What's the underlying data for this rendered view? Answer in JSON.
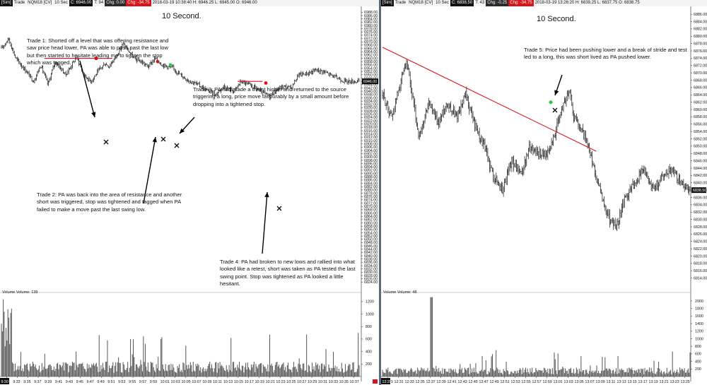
{
  "left": {
    "header": [
      {
        "text": "[Sim]",
        "style": "blk"
      },
      {
        "text": "Trade",
        "style": ""
      },
      {
        "text": "NQM18 [CV]",
        "style": ""
      },
      {
        "text": "10 Sec",
        "style": ""
      },
      {
        "text": "C: 6946.00",
        "style": "blk"
      },
      {
        "text": "T: 94",
        "style": ""
      },
      {
        "text": "Chg: 0.00",
        "style": "grn"
      },
      {
        "text": "Chg: -34.75",
        "style": "red"
      },
      {
        "text": "2018-03-19 10:38:40 H: 6946.25 L: 6945.00 O: 6946.00",
        "style": ""
      }
    ],
    "title": "10 Second.",
    "annotations": {
      "trade1": "Trade 1:  Shorted off a level that was offering resistance and saw price head lower, PA was able to push past the last low but then started to hesitate leading me to tighten the stop which was tagged.",
      "trade2": "Trade 2:  PA was back into the area of resistance and another short was triggered, stop was tightened and tagged when PA failed to make a move past the last swing low.",
      "trade3": "Trade 3:  PA had made a thrust higher and returned to the source triggering a long, price move favourably by a small amount before dropping into a tightened stop.",
      "trade4": "Trade 4:  PA had broken to new lows and rallied into what looked like a retest, short was taken as PA tested the last swing point. Stop was tightened as PA looked a little hesitant."
    },
    "volume_label": "Volume  Volume: 139",
    "last_price_label": "6946.00",
    "x_start_label": "9:30",
    "colors": {
      "line": "#d8141b",
      "entry_red": "#d8141b",
      "entry_green": "#2ecc40",
      "bars": "#111111",
      "volume": "#555555"
    }
  },
  "right": {
    "header": [
      {
        "text": "[Sim]",
        "style": "blk"
      },
      {
        "text": "Trade",
        "style": ""
      },
      {
        "text": "NQM18 [CV]",
        "style": ""
      },
      {
        "text": "10 Sec",
        "style": ""
      },
      {
        "text": "C: 6838.50",
        "style": "blk"
      },
      {
        "text": "T: 43",
        "style": ""
      },
      {
        "text": "Chg: -0.25",
        "style": "grn"
      },
      {
        "text": "Chg: -34.75",
        "style": "red"
      },
      {
        "text": "2018-03-19 13:26:20 H: 6839.25 L: 6837.75 O: 6838.75",
        "style": ""
      }
    ],
    "title": "10 Second.",
    "annotations": {
      "trade5": "Trade 5:  Price had been pushing lower and a break of stride and test led to a long, this was short lived as PA pushed lower."
    },
    "volume_label": "Volume  Volume: 48",
    "last_price_label": "6838.50",
    "x_start_label": "12:29"
  },
  "chart_data": [
    {
      "type": "bar",
      "subtype": "ohlc-price",
      "instrument": "NQM18",
      "interval": "10 Sec",
      "y_ticks": [
        6824,
        6826,
        6828,
        6830,
        6832,
        6834,
        6836,
        6838,
        6840,
        6842,
        6844,
        6846,
        6848,
        6850,
        6852,
        6854,
        6856,
        6858,
        6860,
        6862,
        6864,
        6866,
        6868,
        6870,
        6872,
        6874,
        6876,
        6878,
        6880,
        6882,
        6884,
        6886,
        6888,
        6890,
        6892,
        6894,
        6896,
        6898,
        6900,
        6902,
        6904,
        6906,
        6908,
        6910,
        6912,
        6914,
        6916,
        6918,
        6920,
        6922,
        6924,
        6926,
        6928,
        6930,
        6932,
        6934,
        6936,
        6938,
        6940,
        6942,
        6944,
        6946,
        6948,
        6950,
        6952,
        6954,
        6956,
        6958,
        6960,
        6962,
        6964,
        6966,
        6968,
        6970,
        6972,
        6974,
        6976,
        6978,
        6980,
        6982,
        6984,
        6986,
        6988
      ],
      "ylim": [
        6822,
        6989
      ],
      "x_ticks": [
        "9:31",
        "9:33",
        "9:35",
        "9:37",
        "9:39",
        "9:41",
        "9:43",
        "9:45",
        "9:47",
        "9:49",
        "9:51",
        "9:53",
        "9:55",
        "9:57",
        "9:59",
        "10:01",
        "10:03",
        "10:05",
        "10:07",
        "10:09",
        "10:11",
        "10:13",
        "10:15",
        "10:17",
        "10:19",
        "10:21",
        "10:23",
        "10:25",
        "10:27",
        "10:29",
        "10:31",
        "10:33",
        "10:35",
        "10:37"
      ],
      "price_path": [
        [
          0,
          6966
        ],
        [
          0.02,
          6972
        ],
        [
          0.04,
          6960
        ],
        [
          0.07,
          6952
        ],
        [
          0.09,
          6946
        ],
        [
          0.11,
          6956
        ],
        [
          0.13,
          6944
        ],
        [
          0.15,
          6958
        ],
        [
          0.18,
          6950
        ],
        [
          0.21,
          6961
        ],
        [
          0.23,
          6950
        ],
        [
          0.25,
          6946
        ],
        [
          0.27,
          6952
        ],
        [
          0.29,
          6957
        ],
        [
          0.3,
          6955
        ],
        [
          0.32,
          6961
        ],
        [
          0.34,
          6969
        ],
        [
          0.37,
          6960
        ],
        [
          0.39,
          6958
        ],
        [
          0.41,
          6955
        ],
        [
          0.43,
          6960
        ],
        [
          0.45,
          6956
        ],
        [
          0.48,
          6954
        ],
        [
          0.5,
          6950
        ],
        [
          0.52,
          6947
        ],
        [
          0.55,
          6944
        ],
        [
          0.57,
          6941
        ],
        [
          0.6,
          6938
        ],
        [
          0.62,
          6943
        ],
        [
          0.65,
          6940
        ],
        [
          0.67,
          6946
        ],
        [
          0.69,
          6944
        ],
        [
          0.71,
          6942
        ],
        [
          0.73,
          6939
        ],
        [
          0.75,
          6937
        ],
        [
          0.77,
          6941
        ],
        [
          0.79,
          6943
        ],
        [
          0.81,
          6942
        ],
        [
          0.83,
          6950
        ],
        [
          0.86,
          6951
        ],
        [
          0.88,
          6953
        ],
        [
          0.9,
          6952
        ],
        [
          0.92,
          6950
        ],
        [
          0.94,
          6948
        ],
        [
          0.96,
          6946
        ],
        [
          1.0,
          6946
        ]
      ],
      "resistance_lines": [
        {
          "price": 6960,
          "x_range": [
            0.12,
            0.31
          ]
        },
        {
          "price": 6946,
          "x_range": [
            0.66,
            0.73
          ]
        }
      ],
      "entries": [
        {
          "trade": 1,
          "side": "short",
          "price": 6960
        },
        {
          "trade": 2,
          "side": "short",
          "price": 6958
        },
        {
          "trade": 3,
          "side": "long",
          "price": 6956
        },
        {
          "trade": 4,
          "side": "short",
          "price": 6945
        }
      ],
      "volume_ticks": [
        200,
        400,
        600,
        800,
        1000,
        1200
      ],
      "volume_ylim": [
        0,
        1300
      ],
      "volume_series_peak": 1250
    },
    {
      "type": "bar",
      "subtype": "ohlc-price",
      "instrument": "NQM18",
      "interval": "10 Sec",
      "y_ticks": [
        6814,
        6816,
        6818,
        6820,
        6822,
        6824,
        6826,
        6828,
        6830,
        6832,
        6834,
        6836,
        6838,
        6840,
        6842,
        6844,
        6846,
        6848,
        6850,
        6852,
        6854,
        6856,
        6858,
        6860,
        6862,
        6864,
        6866,
        6868,
        6870,
        6872,
        6874,
        6876,
        6878,
        6880,
        6882,
        6884,
        6886
      ],
      "ylim": [
        6812,
        6887
      ],
      "x_ticks": [
        "12:29",
        "12:31",
        "12:33",
        "12:35",
        "12:37",
        "12:39",
        "12:41",
        "12:43",
        "12:45",
        "12:47",
        "12:49",
        "12:51",
        "12:53",
        "12:55",
        "12:57",
        "12:59",
        "13:01",
        "13:03",
        "13:05",
        "13:07",
        "13:09",
        "13:11",
        "13:13",
        "13:15",
        "13:17",
        "13:19",
        "13:21",
        "13:23",
        "13:25"
      ],
      "price_path": [
        [
          0,
          6864
        ],
        [
          0.03,
          6858
        ],
        [
          0.06,
          6868
        ],
        [
          0.08,
          6872
        ],
        [
          0.1,
          6862
        ],
        [
          0.12,
          6852
        ],
        [
          0.15,
          6862
        ],
        [
          0.18,
          6856
        ],
        [
          0.21,
          6862
        ],
        [
          0.24,
          6858
        ],
        [
          0.27,
          6864
        ],
        [
          0.3,
          6856
        ],
        [
          0.33,
          6850
        ],
        [
          0.36,
          6842
        ],
        [
          0.39,
          6838
        ],
        [
          0.42,
          6846
        ],
        [
          0.45,
          6842
        ],
        [
          0.48,
          6850
        ],
        [
          0.51,
          6848
        ],
        [
          0.54,
          6848
        ],
        [
          0.57,
          6856
        ],
        [
          0.59,
          6862
        ],
        [
          0.61,
          6866
        ],
        [
          0.62,
          6858
        ],
        [
          0.64,
          6856
        ],
        [
          0.66,
          6852
        ],
        [
          0.68,
          6846
        ],
        [
          0.7,
          6840
        ],
        [
          0.72,
          6834
        ],
        [
          0.74,
          6830
        ],
        [
          0.76,
          6828
        ],
        [
          0.79,
          6836
        ],
        [
          0.82,
          6840
        ],
        [
          0.85,
          6844
        ],
        [
          0.88,
          6838
        ],
        [
          0.91,
          6842
        ],
        [
          0.94,
          6844
        ],
        [
          0.97,
          6840
        ],
        [
          1.0,
          6838
        ]
      ],
      "trend_line": {
        "from": [
          0,
          6877
        ],
        "to": [
          0.67,
          6849
        ]
      },
      "entries": [
        {
          "trade": 5,
          "side": "long",
          "price": 6862
        }
      ],
      "volume_ticks": [
        200,
        400,
        600,
        800,
        1000,
        1200,
        1400,
        1600,
        1800,
        2000
      ],
      "volume_ylim": [
        0,
        2150
      ],
      "volume_series_peak": 2100
    }
  ]
}
